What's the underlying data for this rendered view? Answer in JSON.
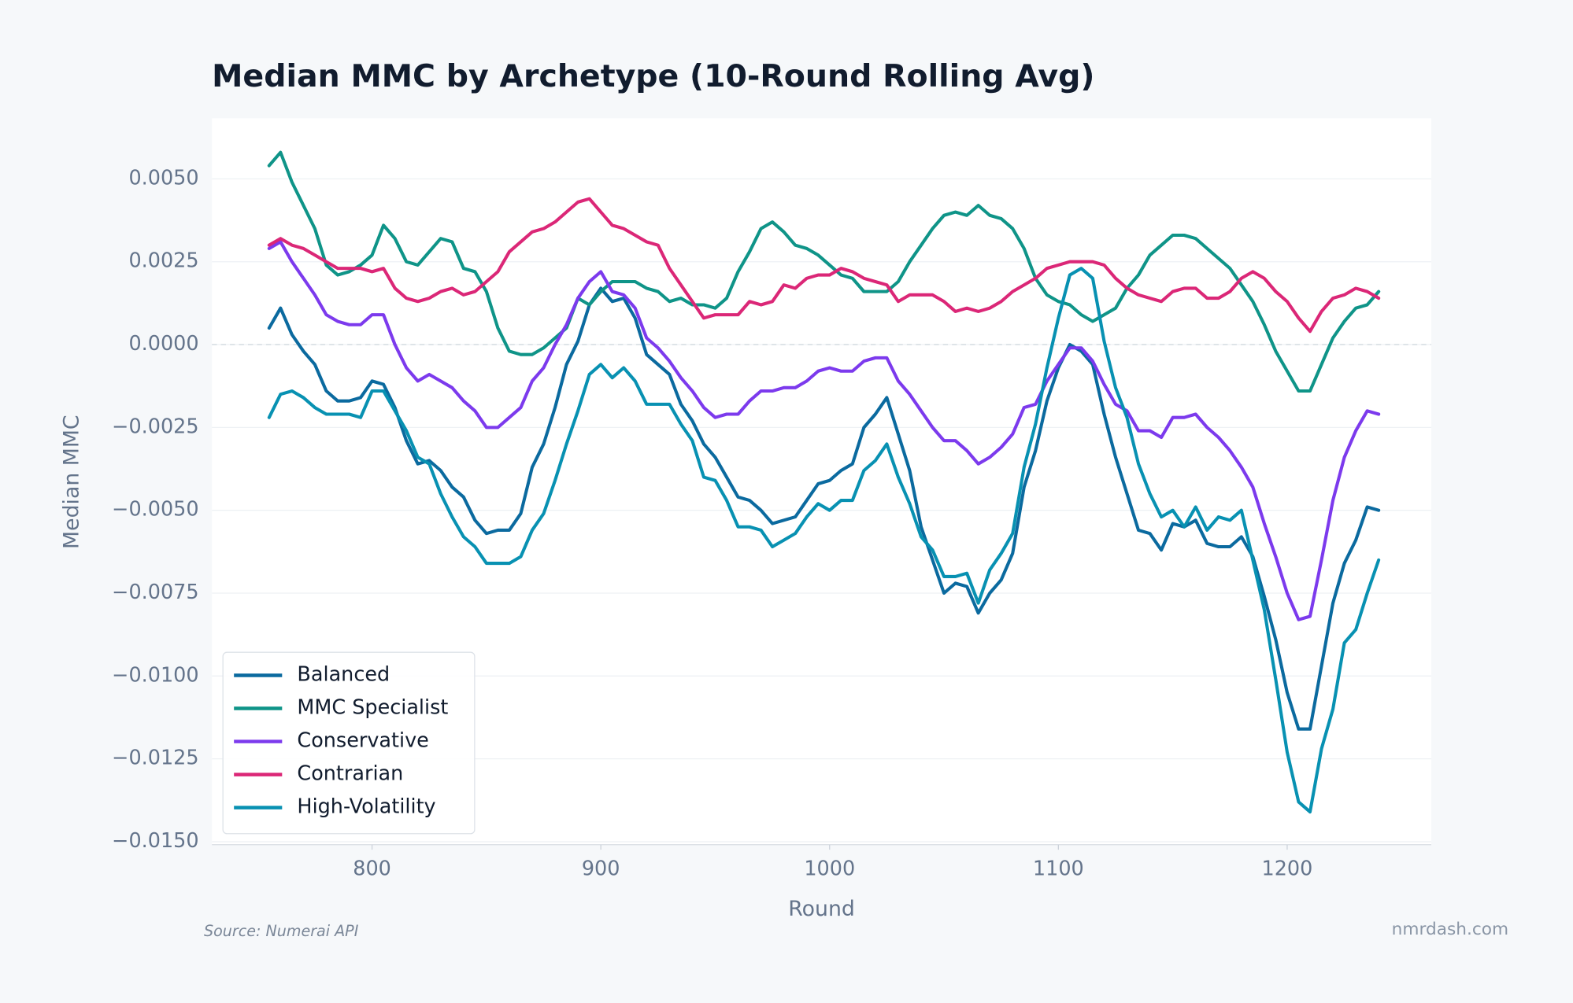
{
  "chart_data": {
    "type": "line",
    "title": "Median MMC by Archetype (10-Round Rolling Avg)",
    "xlabel": "Round",
    "ylabel": "Median MMC",
    "source": "Source: Numerai API",
    "watermark": "nmrdash.com",
    "grid": true,
    "legend": "lower left",
    "hline": 0,
    "xlim": [
      730,
      1263
    ],
    "ylim": [
      -0.01509,
      0.00683
    ],
    "xticks": [
      800,
      900,
      1000,
      1100,
      1200
    ],
    "yticks": [
      {
        "value": 0.005,
        "label": "0.0050"
      },
      {
        "value": 0.0025,
        "label": "0.0025"
      },
      {
        "value": 0,
        "label": "0.0000"
      },
      {
        "value": -0.0025,
        "label": "−0.0025"
      },
      {
        "value": -0.005,
        "label": "−0.0050"
      },
      {
        "value": -0.0075,
        "label": "−0.0075"
      },
      {
        "value": -0.01,
        "label": "−0.0100"
      },
      {
        "value": -0.0125,
        "label": "−0.0125"
      },
      {
        "value": -0.015,
        "label": "−0.0150"
      }
    ],
    "x": [
      755,
      760,
      765,
      770,
      775,
      780,
      785,
      790,
      795,
      800,
      805,
      810,
      815,
      820,
      825,
      830,
      835,
      840,
      845,
      850,
      855,
      860,
      865,
      870,
      875,
      880,
      885,
      890,
      895,
      900,
      905,
      910,
      915,
      920,
      925,
      930,
      935,
      940,
      945,
      950,
      955,
      960,
      965,
      970,
      975,
      980,
      985,
      990,
      995,
      1000,
      1005,
      1010,
      1015,
      1020,
      1025,
      1030,
      1035,
      1040,
      1045,
      1050,
      1055,
      1060,
      1065,
      1070,
      1075,
      1080,
      1085,
      1090,
      1095,
      1100,
      1105,
      1110,
      1115,
      1120,
      1125,
      1130,
      1135,
      1140,
      1145,
      1150,
      1155,
      1160,
      1165,
      1170,
      1175,
      1180,
      1185,
      1190,
      1195,
      1200,
      1205,
      1210,
      1215,
      1220,
      1225,
      1230,
      1235,
      1240
    ],
    "series": [
      {
        "name": "Balanced",
        "color": "#0b6a9f",
        "values": [
          0.0005,
          0.0011,
          0.0003,
          -0.0002,
          -0.0006,
          -0.0014,
          -0.0017,
          -0.0017,
          -0.0016,
          -0.0011,
          -0.0012,
          -0.0019,
          -0.0029,
          -0.0036,
          -0.0035,
          -0.0038,
          -0.0043,
          -0.0046,
          -0.0053,
          -0.0057,
          -0.0056,
          -0.0056,
          -0.0051,
          -0.0037,
          -0.003,
          -0.0019,
          -0.0006,
          0.0001,
          0.0012,
          0.0017,
          0.0013,
          0.0014,
          0.0008,
          -0.0003,
          -0.0006,
          -0.0009,
          -0.0018,
          -0.0023,
          -0.003,
          -0.0034,
          -0.004,
          -0.0046,
          -0.0047,
          -0.005,
          -0.0054,
          -0.0053,
          -0.0052,
          -0.0047,
          -0.0042,
          -0.0041,
          -0.0038,
          -0.0036,
          -0.0025,
          -0.0021,
          -0.0016,
          -0.0027,
          -0.0038,
          -0.0055,
          -0.0065,
          -0.0075,
          -0.0072,
          -0.0073,
          -0.0081,
          -0.0075,
          -0.0071,
          -0.0063,
          -0.0043,
          -0.0032,
          -0.0017,
          -0.0007,
          0.0,
          -0.0002,
          -0.0006,
          -0.0021,
          -0.0034,
          -0.0045,
          -0.0056,
          -0.0057,
          -0.0062,
          -0.0054,
          -0.0055,
          -0.0053,
          -0.006,
          -0.0061,
          -0.0061,
          -0.0058,
          -0.0064,
          -0.0076,
          -0.0089,
          -0.0105,
          -0.0116,
          -0.0116,
          -0.0097,
          -0.0078,
          -0.0066,
          -0.0059,
          -0.0049,
          -0.005
        ]
      },
      {
        "name": "MMC Specialist",
        "color": "#0f9488",
        "values": [
          0.0054,
          0.0058,
          0.0049,
          0.0042,
          0.0035,
          0.0024,
          0.0021,
          0.0022,
          0.0024,
          0.0027,
          0.0036,
          0.0032,
          0.0025,
          0.0024,
          0.0028,
          0.0032,
          0.0031,
          0.0023,
          0.0022,
          0.0016,
          0.0005,
          -0.0002,
          -0.0003,
          -0.0003,
          -0.0001,
          0.0002,
          0.0005,
          0.0014,
          0.0012,
          0.0016,
          0.0019,
          0.0019,
          0.0019,
          0.0017,
          0.0016,
          0.0013,
          0.0014,
          0.0012,
          0.0012,
          0.0011,
          0.0014,
          0.0022,
          0.0028,
          0.0035,
          0.0037,
          0.0034,
          0.003,
          0.0029,
          0.0027,
          0.0024,
          0.0021,
          0.002,
          0.0016,
          0.0016,
          0.0016,
          0.0019,
          0.0025,
          0.003,
          0.0035,
          0.0039,
          0.004,
          0.0039,
          0.0042,
          0.0039,
          0.0038,
          0.0035,
          0.0029,
          0.002,
          0.0015,
          0.0013,
          0.0012,
          0.0009,
          0.0007,
          0.0009,
          0.0011,
          0.0017,
          0.0021,
          0.0027,
          0.003,
          0.0033,
          0.0033,
          0.0032,
          0.0029,
          0.0026,
          0.0023,
          0.0018,
          0.0013,
          0.0006,
          -0.0002,
          -0.0008,
          -0.0014,
          -0.0014,
          -0.0006,
          0.0002,
          0.0007,
          0.0011,
          0.0012,
          0.0016
        ]
      },
      {
        "name": "Conservative",
        "color": "#7c3aed",
        "values": [
          0.0029,
          0.0031,
          0.0025,
          0.002,
          0.0015,
          0.0009,
          0.0007,
          0.0006,
          0.0006,
          0.0009,
          0.0009,
          0.0,
          -0.0007,
          -0.0011,
          -0.0009,
          -0.0011,
          -0.0013,
          -0.0017,
          -0.002,
          -0.0025,
          -0.0025,
          -0.0022,
          -0.0019,
          -0.0011,
          -0.0007,
          0.0,
          0.0006,
          0.0014,
          0.0019,
          0.0022,
          0.0016,
          0.0015,
          0.0011,
          0.0002,
          -0.0001,
          -0.0005,
          -0.001,
          -0.0014,
          -0.0019,
          -0.0022,
          -0.0021,
          -0.0021,
          -0.0017,
          -0.0014,
          -0.0014,
          -0.0013,
          -0.0013,
          -0.0011,
          -0.0008,
          -0.0007,
          -0.0008,
          -0.0008,
          -0.0005,
          -0.0004,
          -0.0004,
          -0.0011,
          -0.0015,
          -0.002,
          -0.0025,
          -0.0029,
          -0.0029,
          -0.0032,
          -0.0036,
          -0.0034,
          -0.0031,
          -0.0027,
          -0.0019,
          -0.0018,
          -0.0011,
          -0.0006,
          -0.0001,
          -0.0001,
          -0.0005,
          -0.0012,
          -0.0018,
          -0.002,
          -0.0026,
          -0.0026,
          -0.0028,
          -0.0022,
          -0.0022,
          -0.0021,
          -0.0025,
          -0.0028,
          -0.0032,
          -0.0037,
          -0.0043,
          -0.0054,
          -0.0064,
          -0.0075,
          -0.0083,
          -0.0082,
          -0.0065,
          -0.0047,
          -0.0034,
          -0.0026,
          -0.002,
          -0.0021
        ]
      },
      {
        "name": "Contrarian",
        "color": "#db2777",
        "values": [
          0.003,
          0.0032,
          0.003,
          0.0029,
          0.0027,
          0.0025,
          0.0023,
          0.0023,
          0.0023,
          0.0022,
          0.0023,
          0.0017,
          0.0014,
          0.0013,
          0.0014,
          0.0016,
          0.0017,
          0.0015,
          0.0016,
          0.0019,
          0.0022,
          0.0028,
          0.0031,
          0.0034,
          0.0035,
          0.0037,
          0.004,
          0.0043,
          0.0044,
          0.004,
          0.0036,
          0.0035,
          0.0033,
          0.0031,
          0.003,
          0.0023,
          0.0018,
          0.0013,
          0.0008,
          0.0009,
          0.0009,
          0.0009,
          0.0013,
          0.0012,
          0.0013,
          0.0018,
          0.0017,
          0.002,
          0.0021,
          0.0021,
          0.0023,
          0.0022,
          0.002,
          0.0019,
          0.0018,
          0.0013,
          0.0015,
          0.0015,
          0.0015,
          0.0013,
          0.001,
          0.0011,
          0.001,
          0.0011,
          0.0013,
          0.0016,
          0.0018,
          0.002,
          0.0023,
          0.0024,
          0.0025,
          0.0025,
          0.0025,
          0.0024,
          0.002,
          0.0017,
          0.0015,
          0.0014,
          0.0013,
          0.0016,
          0.0017,
          0.0017,
          0.0014,
          0.0014,
          0.0016,
          0.002,
          0.0022,
          0.002,
          0.0016,
          0.0013,
          0.0008,
          0.0004,
          0.001,
          0.0014,
          0.0015,
          0.0017,
          0.0016,
          0.0014
        ]
      },
      {
        "name": "High-Volatility",
        "color": "#0891b2",
        "values": [
          -0.0022,
          -0.0015,
          -0.0014,
          -0.0016,
          -0.0019,
          -0.0021,
          -0.0021,
          -0.0021,
          -0.0022,
          -0.0014,
          -0.0014,
          -0.002,
          -0.0026,
          -0.0034,
          -0.0036,
          -0.0045,
          -0.0052,
          -0.0058,
          -0.0061,
          -0.0066,
          -0.0066,
          -0.0066,
          -0.0064,
          -0.0056,
          -0.0051,
          -0.0041,
          -0.003,
          -0.002,
          -0.0009,
          -0.0006,
          -0.001,
          -0.0007,
          -0.0011,
          -0.0018,
          -0.0018,
          -0.0018,
          -0.0024,
          -0.0029,
          -0.004,
          -0.0041,
          -0.0047,
          -0.0055,
          -0.0055,
          -0.0056,
          -0.0061,
          -0.0059,
          -0.0057,
          -0.0052,
          -0.0048,
          -0.005,
          -0.0047,
          -0.0047,
          -0.0038,
          -0.0035,
          -0.003,
          -0.004,
          -0.0048,
          -0.0058,
          -0.0062,
          -0.007,
          -0.007,
          -0.0069,
          -0.0078,
          -0.0068,
          -0.0063,
          -0.0057,
          -0.0037,
          -0.0024,
          -0.0007,
          0.0008,
          0.0021,
          0.0023,
          0.002,
          0.0001,
          -0.0013,
          -0.0022,
          -0.0036,
          -0.0045,
          -0.0052,
          -0.005,
          -0.0055,
          -0.0049,
          -0.0056,
          -0.0052,
          -0.0053,
          -0.005,
          -0.0065,
          -0.008,
          -0.0101,
          -0.0123,
          -0.0138,
          -0.0141,
          -0.0122,
          -0.011,
          -0.009,
          -0.0086,
          -0.0075,
          -0.0065
        ]
      }
    ]
  }
}
